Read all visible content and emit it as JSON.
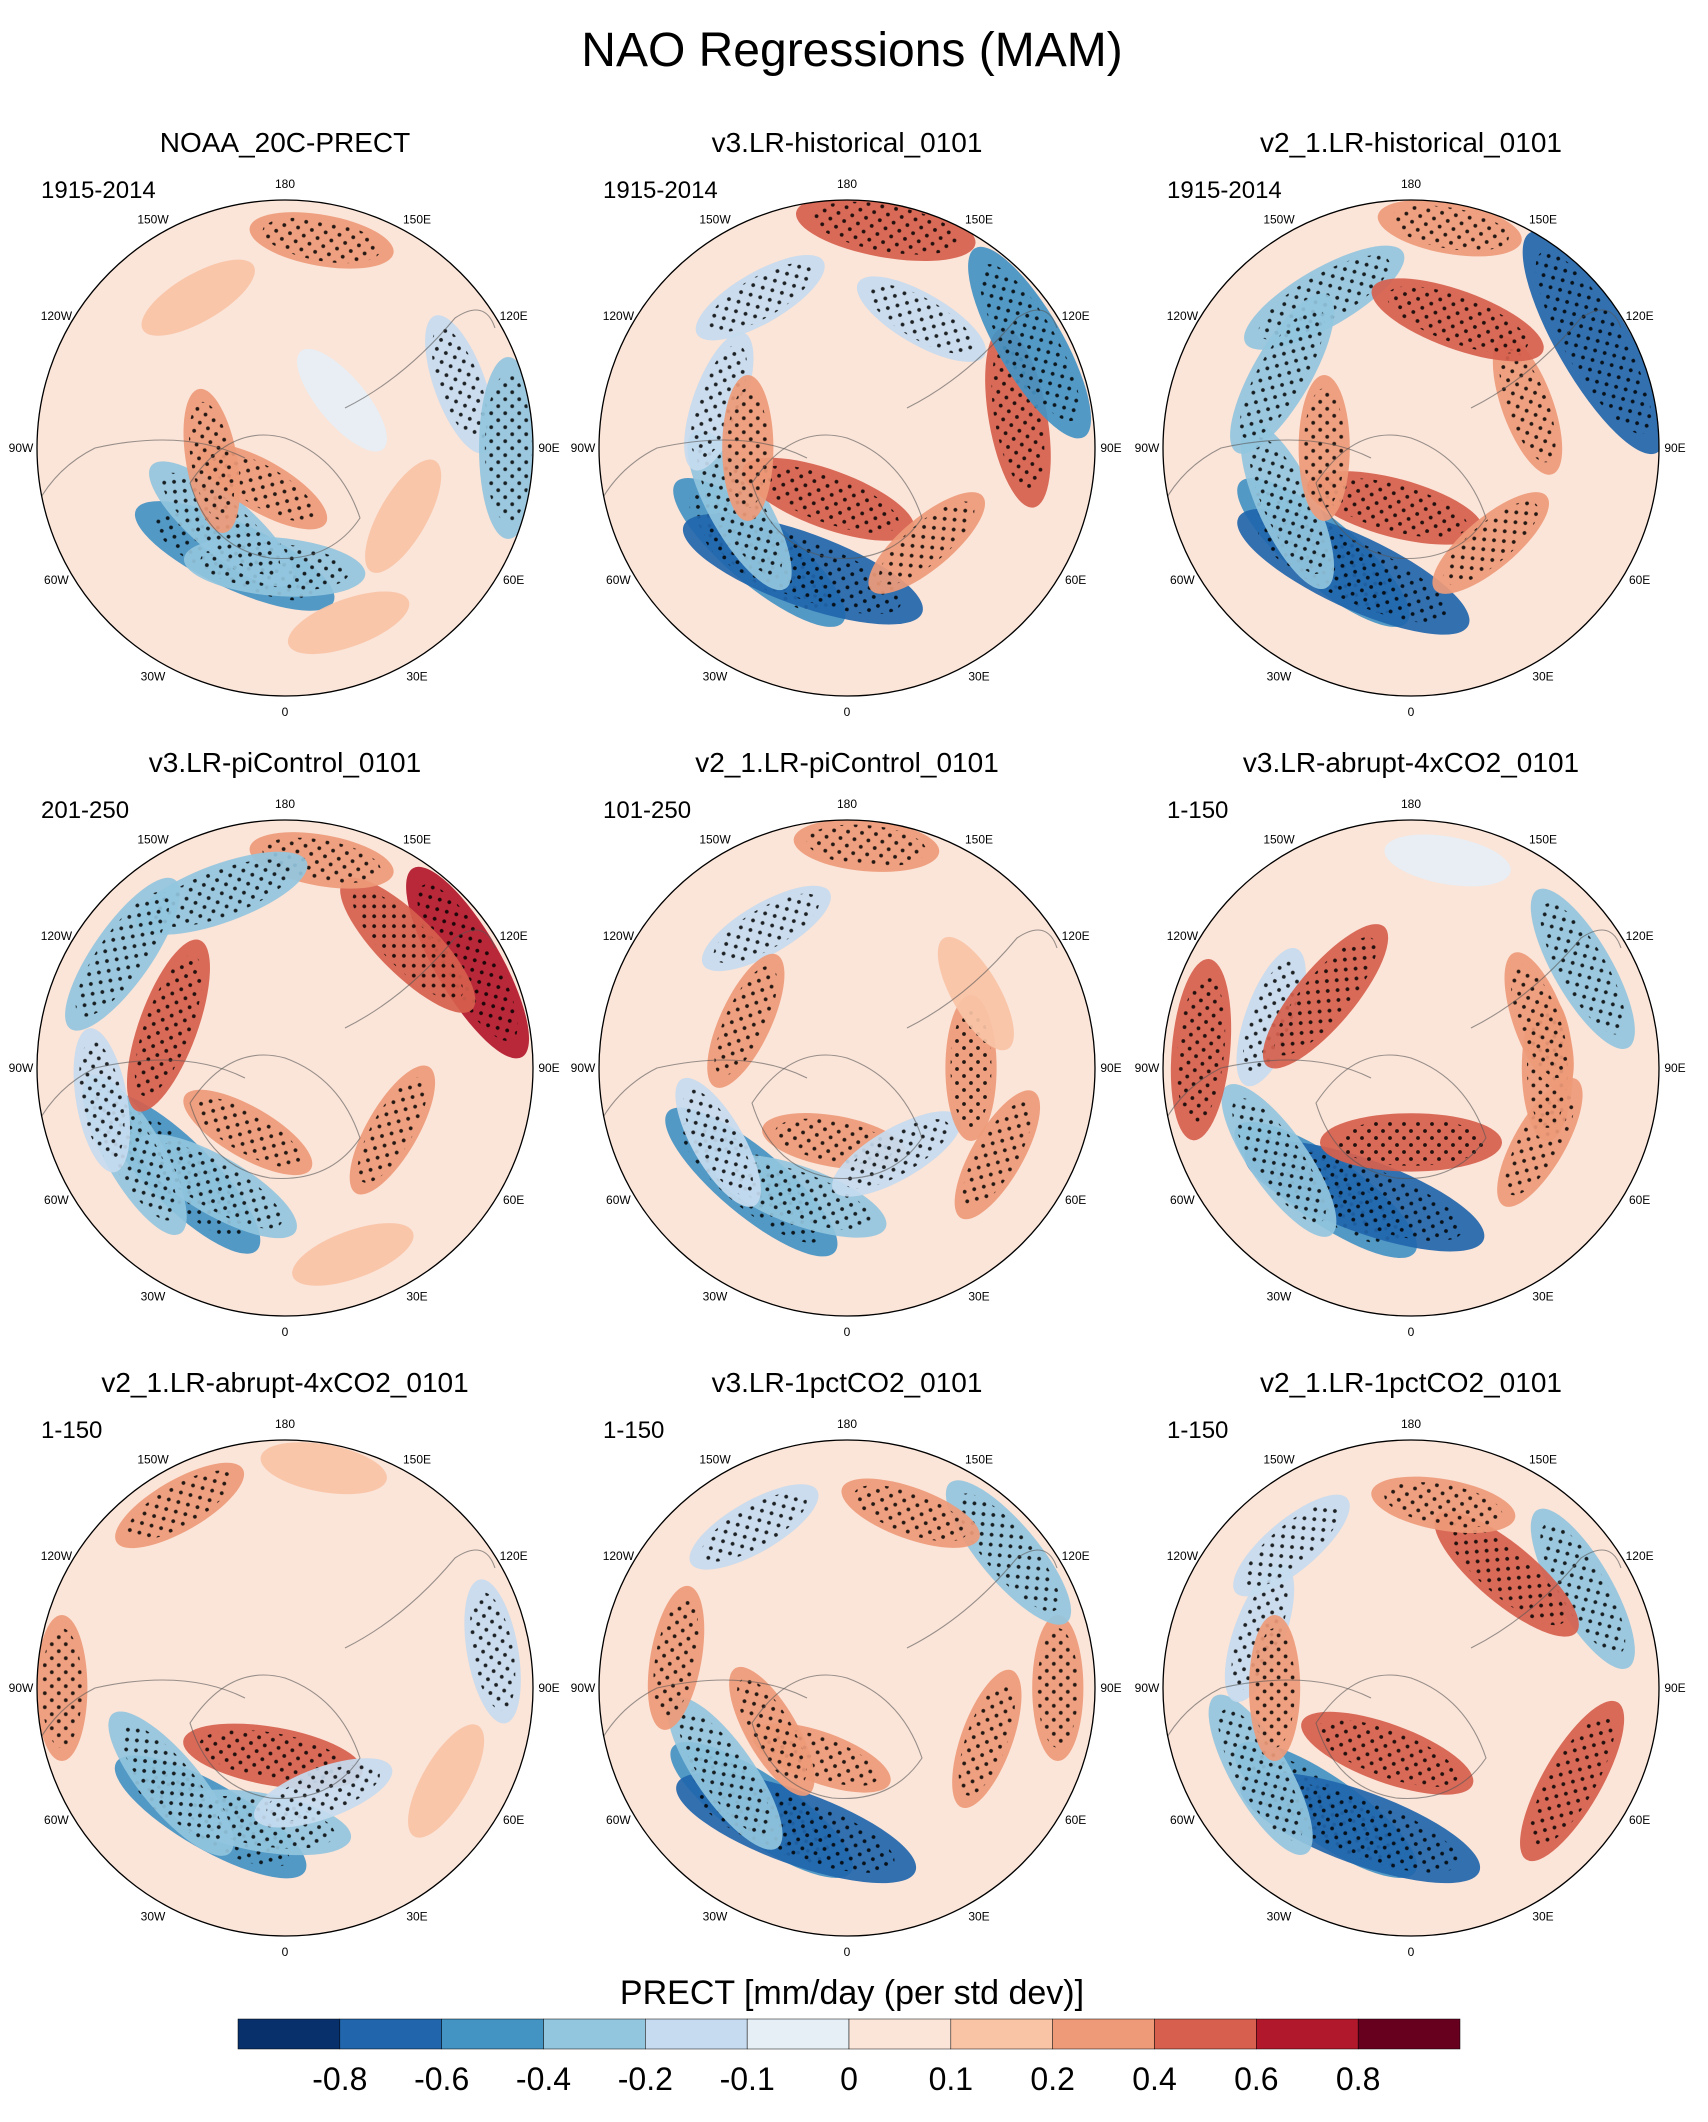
{
  "chart_data": {
    "type": "polar-stereographic-map-panels",
    "title": "NAO Regressions (MAM)",
    "variable": "PRECT",
    "stippling": "significant regression",
    "longitude_labels": [
      "180",
      "150E",
      "120E",
      "90E",
      "60E",
      "30E",
      "0",
      "30W",
      "60W",
      "90W",
      "120W",
      "150W"
    ],
    "panels": [
      {
        "title": "NOAA_20C-PRECT",
        "period": "1915-2014",
        "anomalies": [
          {
            "lon": -25,
            "r": 0.48,
            "value": -0.6
          },
          {
            "lon": -5,
            "r": 0.48,
            "value": -0.4
          },
          {
            "lon": -40,
            "r": 0.4,
            "value": -0.4
          },
          {
            "lon": -30,
            "r": 0.18,
            "value": 0.2
          },
          {
            "lon": 60,
            "r": 0.55,
            "value": 0.1
          },
          {
            "lon": 110,
            "r": 0.75,
            "value": -0.2
          },
          {
            "lon": 90,
            "r": 0.9,
            "value": -0.4
          },
          {
            "lon": 170,
            "r": 0.85,
            "value": 0.2
          },
          {
            "lon": -150,
            "r": 0.7,
            "value": 0.1
          },
          {
            "lon": 130,
            "r": 0.3,
            "value": -0.1
          },
          {
            "lon": -80,
            "r": 0.3,
            "value": 0.2
          },
          {
            "lon": 20,
            "r": 0.75,
            "value": 0.1
          }
        ]
      },
      {
        "title": "v3.LR-historical_0101",
        "period": "1915-2014",
        "anomalies": [
          {
            "lon": -40,
            "r": 0.55,
            "value": -0.6
          },
          {
            "lon": -20,
            "r": 0.52,
            "value": -0.8
          },
          {
            "lon": -60,
            "r": 0.5,
            "value": -0.4
          },
          {
            "lon": -20,
            "r": 0.22,
            "value": 0.4
          },
          {
            "lon": 40,
            "r": 0.5,
            "value": 0.2
          },
          {
            "lon": 100,
            "r": 0.7,
            "value": 0.4
          },
          {
            "lon": 120,
            "r": 0.85,
            "value": -0.6
          },
          {
            "lon": 170,
            "r": 0.9,
            "value": 0.4
          },
          {
            "lon": -150,
            "r": 0.7,
            "value": -0.2
          },
          {
            "lon": -110,
            "r": 0.55,
            "value": -0.2
          },
          {
            "lon": -90,
            "r": 0.4,
            "value": 0.2
          },
          {
            "lon": 150,
            "r": 0.6,
            "value": -0.2
          }
        ]
      },
      {
        "title": "v2_1.LR-historical_0101",
        "period": "1915-2014",
        "anomalies": [
          {
            "lon": -40,
            "r": 0.55,
            "value": -0.6
          },
          {
            "lon": -25,
            "r": 0.55,
            "value": -0.8
          },
          {
            "lon": -65,
            "r": 0.55,
            "value": -0.4
          },
          {
            "lon": -15,
            "r": 0.25,
            "value": 0.4
          },
          {
            "lon": 40,
            "r": 0.5,
            "value": 0.2
          },
          {
            "lon": 110,
            "r": 0.5,
            "value": 0.2
          },
          {
            "lon": 120,
            "r": 0.85,
            "value": -0.8
          },
          {
            "lon": 170,
            "r": 0.9,
            "value": 0.2
          },
          {
            "lon": -150,
            "r": 0.7,
            "value": -0.4
          },
          {
            "lon": -120,
            "r": 0.6,
            "value": -0.4
          },
          {
            "lon": -90,
            "r": 0.35,
            "value": 0.2
          },
          {
            "lon": 160,
            "r": 0.55,
            "value": 0.4
          }
        ]
      },
      {
        "title": "v3.LR-piControl_0101",
        "period": "201-250",
        "anomalies": [
          {
            "lon": -45,
            "r": 0.6,
            "value": -0.6
          },
          {
            "lon": -30,
            "r": 0.55,
            "value": -0.4
          },
          {
            "lon": -60,
            "r": 0.7,
            "value": -0.4
          },
          {
            "lon": -30,
            "r": 0.3,
            "value": 0.2
          },
          {
            "lon": 60,
            "r": 0.5,
            "value": 0.2
          },
          {
            "lon": 120,
            "r": 0.85,
            "value": 0.6
          },
          {
            "lon": 135,
            "r": 0.7,
            "value": 0.4
          },
          {
            "lon": 170,
            "r": 0.85,
            "value": 0.2
          },
          {
            "lon": -160,
            "r": 0.75,
            "value": -0.4
          },
          {
            "lon": -125,
            "r": 0.8,
            "value": -0.4
          },
          {
            "lon": -110,
            "r": 0.5,
            "value": 0.4
          },
          {
            "lon": -80,
            "r": 0.75,
            "value": -0.2
          },
          {
            "lon": 20,
            "r": 0.8,
            "value": 0.1
          }
        ]
      },
      {
        "title": "v2_1.LR-piControl_0101",
        "period": "101-250",
        "anomalies": [
          {
            "lon": -40,
            "r": 0.6,
            "value": -0.6
          },
          {
            "lon": -20,
            "r": 0.55,
            "value": -0.4
          },
          {
            "lon": -60,
            "r": 0.6,
            "value": -0.2
          },
          {
            "lon": -10,
            "r": 0.3,
            "value": 0.2
          },
          {
            "lon": 30,
            "r": 0.4,
            "value": -0.2
          },
          {
            "lon": 90,
            "r": 0.5,
            "value": 0.2
          },
          {
            "lon": 120,
            "r": 0.6,
            "value": 0.1
          },
          {
            "lon": 175,
            "r": 0.9,
            "value": 0.2
          },
          {
            "lon": -150,
            "r": 0.65,
            "value": -0.2
          },
          {
            "lon": -115,
            "r": 0.45,
            "value": 0.2
          },
          {
            "lon": 60,
            "r": 0.7,
            "value": 0.2
          }
        ]
      },
      {
        "title": "v3.LR-abrupt-4xCO2_0101",
        "period": "1-150",
        "anomalies": [
          {
            "lon": -35,
            "r": 0.6,
            "value": -0.6
          },
          {
            "lon": -20,
            "r": 0.55,
            "value": -0.8
          },
          {
            "lon": -55,
            "r": 0.65,
            "value": -0.4
          },
          {
            "lon": 0,
            "r": 0.3,
            "value": 0.4
          },
          {
            "lon": 60,
            "r": 0.6,
            "value": 0.2
          },
          {
            "lon": 90,
            "r": 0.55,
            "value": 0.2
          },
          {
            "lon": 120,
            "r": 0.8,
            "value": -0.4
          },
          {
            "lon": 110,
            "r": 0.55,
            "value": 0.2
          },
          {
            "lon": -110,
            "r": 0.6,
            "value": -0.2
          },
          {
            "lon": -95,
            "r": 0.85,
            "value": 0.4
          },
          {
            "lon": -130,
            "r": 0.45,
            "value": 0.4
          },
          {
            "lon": 170,
            "r": 0.85,
            "value": -0.1
          }
        ]
      },
      {
        "title": "v2_1.LR-abrupt-4xCO2_0101",
        "period": "1-150",
        "anomalies": [
          {
            "lon": -30,
            "r": 0.6,
            "value": -0.6
          },
          {
            "lon": -10,
            "r": 0.55,
            "value": -0.4
          },
          {
            "lon": -50,
            "r": 0.6,
            "value": -0.4
          },
          {
            "lon": -10,
            "r": 0.28,
            "value": 0.4
          },
          {
            "lon": 20,
            "r": 0.45,
            "value": -0.2
          },
          {
            "lon": 100,
            "r": 0.85,
            "value": -0.2
          },
          {
            "lon": -150,
            "r": 0.85,
            "value": 0.2
          },
          {
            "lon": -90,
            "r": 0.9,
            "value": 0.2
          },
          {
            "lon": 170,
            "r": 0.9,
            "value": 0.1
          },
          {
            "lon": 60,
            "r": 0.75,
            "value": 0.1
          }
        ]
      },
      {
        "title": "v3.LR-1pctCO2_0101",
        "period": "1-150",
        "anomalies": [
          {
            "lon": -35,
            "r": 0.6,
            "value": -0.6
          },
          {
            "lon": -20,
            "r": 0.6,
            "value": -0.8
          },
          {
            "lon": -55,
            "r": 0.6,
            "value": -0.4
          },
          {
            "lon": -20,
            "r": 0.3,
            "value": 0.2
          },
          {
            "lon": -60,
            "r": 0.35,
            "value": 0.2
          },
          {
            "lon": 70,
            "r": 0.6,
            "value": 0.2
          },
          {
            "lon": 90,
            "r": 0.85,
            "value": 0.2
          },
          {
            "lon": 130,
            "r": 0.85,
            "value": -0.4
          },
          {
            "lon": 160,
            "r": 0.75,
            "value": 0.2
          },
          {
            "lon": -150,
            "r": 0.75,
            "value": -0.2
          },
          {
            "lon": -100,
            "r": 0.7,
            "value": 0.2
          }
        ]
      },
      {
        "title": "v2_1.LR-1pctCO2_0101",
        "period": "1-150",
        "anomalies": [
          {
            "lon": -35,
            "r": 0.6,
            "value": -0.6
          },
          {
            "lon": -20,
            "r": 0.6,
            "value": -0.8
          },
          {
            "lon": -60,
            "r": 0.7,
            "value": -0.4
          },
          {
            "lon": -20,
            "r": 0.28,
            "value": 0.4
          },
          {
            "lon": 60,
            "r": 0.75,
            "value": 0.4
          },
          {
            "lon": 120,
            "r": 0.8,
            "value": -0.4
          },
          {
            "lon": 140,
            "r": 0.6,
            "value": 0.4
          },
          {
            "lon": 170,
            "r": 0.75,
            "value": 0.2
          },
          {
            "lon": -110,
            "r": 0.65,
            "value": -0.2
          },
          {
            "lon": -90,
            "r": 0.55,
            "value": 0.2
          },
          {
            "lon": -140,
            "r": 0.75,
            "value": -0.2
          }
        ]
      }
    ],
    "colorbar": {
      "label": "PRECT [mm/day (per std dev)]",
      "tick_labels": [
        "-0.8",
        "-0.6",
        "-0.4",
        "-0.2",
        "-0.1",
        "0",
        "0.1",
        "0.2",
        "0.4",
        "0.6",
        "0.8"
      ],
      "colors": [
        "#08306b",
        "#2166ac",
        "#4393c3",
        "#92c5de",
        "#c6dbef",
        "#e6eff5",
        "#fbe4d8",
        "#f9c3a6",
        "#ee9a78",
        "#d6604d",
        "#b2182b",
        "#67001f"
      ]
    }
  }
}
